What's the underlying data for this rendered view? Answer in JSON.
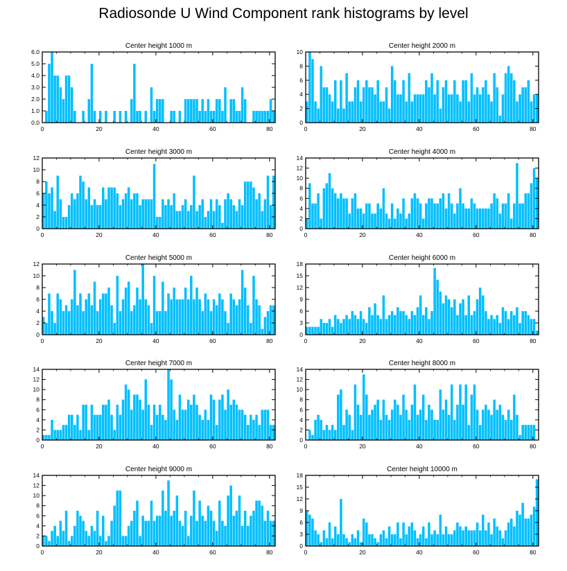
{
  "title": "Radiosonde U Wind Component rank histograms by level",
  "colors": {
    "bar": "#00BFFF",
    "frame": "#000000"
  },
  "chart_data": [
    {
      "type": "bar",
      "title": "Center height 1000 m",
      "xlim": [
        0,
        82
      ],
      "ylim": [
        0,
        6
      ],
      "xticks": [
        0,
        20,
        40,
        60,
        80
      ],
      "yticks": [
        0,
        1,
        2,
        3,
        4,
        5,
        6
      ],
      "ytick_labels": [
        "0.0",
        "1.0",
        "2.0",
        "3.0",
        "4.0",
        "5.0",
        "6.0"
      ],
      "values": [
        0,
        1,
        5,
        6,
        4,
        4,
        3,
        2,
        4,
        4,
        3,
        1,
        0,
        0,
        1,
        0,
        2,
        5,
        1,
        0,
        1,
        0,
        1,
        0,
        0,
        1,
        0,
        1,
        0,
        1,
        0,
        2,
        5,
        1,
        1,
        0,
        1,
        0,
        3,
        1,
        2,
        2,
        2,
        0,
        0,
        1,
        1,
        0,
        1,
        0,
        2,
        2,
        2,
        2,
        2,
        1,
        2,
        1,
        2,
        1,
        1,
        2,
        2,
        1,
        3,
        0,
        2,
        2,
        1,
        1,
        3,
        2,
        0,
        0,
        1,
        1,
        1,
        1,
        1,
        1,
        2,
        1
      ]
    },
    {
      "type": "bar",
      "title": "Center height 2000 m",
      "xlim": [
        0,
        82
      ],
      "ylim": [
        0,
        10
      ],
      "xticks": [
        0,
        20,
        40,
        60,
        80
      ],
      "yticks": [
        0,
        2,
        4,
        6,
        8,
        10
      ],
      "ytick_labels": [
        "0",
        "2",
        "4",
        "6",
        "8",
        "10"
      ],
      "values": [
        3,
        10,
        9,
        3,
        2,
        8,
        5,
        5,
        4,
        3,
        6,
        2,
        6,
        2,
        7,
        3,
        3,
        5,
        6,
        3,
        5,
        6,
        5,
        5,
        4,
        6,
        3,
        3,
        5,
        2,
        8,
        6,
        4,
        4,
        6,
        3,
        7,
        3,
        4,
        4,
        4,
        4,
        6,
        5,
        7,
        4,
        6,
        2,
        5,
        6,
        4,
        4,
        6,
        4,
        3,
        6,
        6,
        3,
        7,
        4,
        5,
        4,
        5,
        6,
        4,
        3,
        7,
        5,
        1,
        4,
        7,
        8,
        7,
        6,
        3,
        4,
        5,
        5,
        6,
        3,
        4,
        4
      ]
    },
    {
      "type": "bar",
      "title": "Center height 3000 m",
      "xlim": [
        0,
        82
      ],
      "ylim": [
        0,
        12
      ],
      "xticks": [
        0,
        20,
        40,
        60,
        80
      ],
      "yticks": [
        0,
        2,
        4,
        6,
        8,
        10,
        12
      ],
      "ytick_labels": [
        "0",
        "2",
        "4",
        "6",
        "8",
        "10",
        "12"
      ],
      "values": [
        6,
        8,
        6,
        7,
        3,
        9,
        5,
        2,
        2,
        4,
        6,
        5,
        6,
        9,
        8,
        5,
        7,
        4,
        5,
        4,
        4,
        7,
        5,
        7,
        7,
        7,
        6,
        4,
        5,
        6,
        7,
        5,
        6,
        6,
        4,
        5,
        5,
        5,
        5,
        11,
        2,
        2,
        5,
        4,
        5,
        4,
        6,
        3,
        3,
        4,
        5,
        3,
        4,
        9,
        3,
        4,
        5,
        2,
        3,
        5,
        3,
        5,
        4,
        1,
        5,
        6,
        5,
        4,
        3,
        5,
        4,
        8,
        8,
        8,
        7,
        5,
        6,
        3,
        5,
        9,
        4,
        9
      ]
    },
    {
      "type": "bar",
      "title": "Center height 4000 m",
      "xlim": [
        0,
        82
      ],
      "ylim": [
        0,
        14
      ],
      "xticks": [
        0,
        20,
        40,
        60,
        80
      ],
      "yticks": [
        0,
        2,
        4,
        6,
        8,
        10,
        12,
        14
      ],
      "ytick_labels": [
        "0",
        "2",
        "4",
        "6",
        "8",
        "10",
        "12",
        "14"
      ],
      "values": [
        2,
        9,
        5,
        5,
        7,
        2,
        8,
        9,
        11,
        8,
        7,
        6,
        7,
        6,
        6,
        3,
        6,
        7,
        4,
        4,
        3,
        5,
        5,
        3,
        3,
        5,
        4,
        8,
        3,
        2,
        5,
        2,
        4,
        3,
        6,
        2,
        3,
        6,
        7,
        6,
        5,
        2,
        5,
        6,
        6,
        5,
        5,
        6,
        7,
        4,
        7,
        5,
        3,
        5,
        8,
        5,
        4,
        4,
        6,
        5,
        4,
        4,
        4,
        4,
        4,
        5,
        7,
        6,
        3,
        5,
        5,
        7,
        2,
        5,
        13,
        5,
        5,
        7,
        7,
        9,
        12,
        10
      ]
    },
    {
      "type": "bar",
      "title": "Center height 5000 m",
      "xlim": [
        0,
        82
      ],
      "ylim": [
        0,
        12
      ],
      "xticks": [
        0,
        20,
        40,
        60,
        80
      ],
      "yticks": [
        0,
        2,
        4,
        6,
        8,
        10,
        12
      ],
      "ytick_labels": [
        "0",
        "2",
        "4",
        "6",
        "8",
        "10",
        "12"
      ],
      "values": [
        3,
        2,
        7,
        4,
        2,
        7,
        6,
        4,
        5,
        4,
        6,
        11,
        5,
        7,
        4,
        6,
        7,
        5,
        9,
        4,
        6,
        7,
        7,
        8,
        5,
        2,
        10,
        4,
        6,
        8,
        9,
        4,
        5,
        8,
        6,
        12,
        6,
        5,
        2,
        10,
        4,
        4,
        9,
        4,
        7,
        6,
        8,
        6,
        6,
        6,
        8,
        6,
        10,
        6,
        8,
        6,
        4,
        7,
        6,
        4,
        6,
        5,
        7,
        6,
        4,
        2,
        7,
        6,
        5,
        6,
        11,
        8,
        5,
        2,
        10,
        6,
        5,
        1,
        3,
        4,
        5,
        5
      ]
    },
    {
      "type": "bar",
      "title": "Center height 6000 m",
      "xlim": [
        0,
        82
      ],
      "ylim": [
        0,
        18
      ],
      "xticks": [
        0,
        20,
        40,
        60,
        80
      ],
      "yticks": [
        0,
        3,
        6,
        9,
        12,
        15,
        18
      ],
      "ytick_labels": [
        "0",
        "3",
        "6",
        "9",
        "12",
        "15",
        "18"
      ],
      "values": [
        2,
        2,
        2,
        2,
        2,
        4,
        3,
        3,
        4,
        2,
        5,
        4,
        3,
        4,
        5,
        4,
        6,
        5,
        4,
        6,
        4,
        3,
        7,
        5,
        8,
        5,
        4,
        10,
        4,
        5,
        6,
        5,
        7,
        6,
        6,
        5,
        4,
        6,
        5,
        7,
        10,
        5,
        7,
        4,
        6,
        17,
        14,
        11,
        8,
        10,
        9,
        7,
        9,
        5,
        8,
        9,
        5,
        10,
        5,
        6,
        9,
        12,
        10,
        6,
        4,
        5,
        4,
        5,
        3,
        7,
        6,
        4,
        6,
        5,
        7,
        3,
        6,
        6,
        5,
        4,
        4,
        1
      ]
    },
    {
      "type": "bar",
      "title": "Center height 7000 m",
      "xlim": [
        0,
        82
      ],
      "ylim": [
        0,
        14
      ],
      "xticks": [
        0,
        20,
        40,
        60,
        80
      ],
      "yticks": [
        0,
        2,
        4,
        6,
        8,
        10,
        12,
        14
      ],
      "ytick_labels": [
        "0",
        "2",
        "4",
        "6",
        "8",
        "10",
        "12",
        "14"
      ],
      "values": [
        1,
        1,
        1,
        4,
        2,
        2,
        2,
        3,
        3,
        5,
        5,
        3,
        5,
        2,
        7,
        7,
        2,
        7,
        5,
        5,
        5,
        7,
        7,
        8,
        5,
        2,
        7,
        5,
        8,
        11,
        10,
        6,
        9,
        9,
        8,
        6,
        12,
        7,
        3,
        7,
        5,
        7,
        5,
        4,
        14,
        12,
        6,
        4,
        9,
        6,
        6,
        8,
        7,
        9,
        7,
        5,
        4,
        6,
        4,
        9,
        8,
        3,
        8,
        9,
        6,
        10,
        7,
        8,
        7,
        6,
        6,
        5,
        3,
        5,
        4,
        5,
        3,
        6,
        6,
        6,
        3,
        3
      ]
    },
    {
      "type": "bar",
      "title": "Center height 8000 m",
      "xlim": [
        0,
        82
      ],
      "ylim": [
        0,
        14
      ],
      "xticks": [
        0,
        20,
        40,
        60,
        80
      ],
      "yticks": [
        0,
        2,
        4,
        6,
        8,
        10,
        12,
        14
      ],
      "ytick_labels": [
        "0",
        "2",
        "4",
        "6",
        "8",
        "10",
        "12",
        "14"
      ],
      "values": [
        0,
        2,
        1,
        4,
        5,
        4,
        2,
        3,
        2,
        3,
        2,
        9,
        10,
        3,
        6,
        5,
        2,
        11,
        7,
        5,
        13,
        9,
        5,
        6,
        7,
        8,
        4,
        8,
        5,
        4,
        6,
        8,
        7,
        5,
        9,
        6,
        4,
        7,
        11,
        5,
        6,
        9,
        4,
        7,
        6,
        4,
        4,
        10,
        6,
        8,
        5,
        11,
        4,
        7,
        11,
        7,
        11,
        3,
        9,
        11,
        6,
        3,
        6,
        7,
        6,
        5,
        8,
        6,
        7,
        5,
        4,
        6,
        4,
        9,
        5,
        1,
        3,
        3,
        3,
        3,
        3,
        0
      ]
    },
    {
      "type": "bar",
      "title": "Center height 9000 m",
      "xlim": [
        0,
        82
      ],
      "ylim": [
        0,
        14
      ],
      "xticks": [
        0,
        20,
        40,
        60,
        80
      ],
      "yticks": [
        0,
        2,
        4,
        6,
        8,
        10,
        12,
        14
      ],
      "ytick_labels": [
        "0",
        "2",
        "4",
        "6",
        "8",
        "10",
        "12",
        "14"
      ],
      "values": [
        2,
        2,
        1,
        3,
        4,
        2,
        5,
        3,
        7,
        1,
        2,
        4,
        7,
        6,
        5,
        3,
        2,
        4,
        3,
        7,
        2,
        6,
        1,
        2,
        5,
        8,
        11,
        11,
        2,
        2,
        4,
        5,
        7,
        9,
        2,
        6,
        5,
        5,
        9,
        5,
        6,
        6,
        11,
        7,
        13,
        6,
        7,
        10,
        5,
        4,
        7,
        2,
        6,
        11,
        5,
        9,
        6,
        5,
        8,
        7,
        5,
        3,
        9,
        5,
        4,
        10,
        12,
        6,
        7,
        10,
        4,
        7,
        4,
        6,
        7,
        9,
        9,
        8,
        5,
        7,
        5,
        5
      ]
    },
    {
      "type": "bar",
      "title": "Center height 10000 m",
      "xlim": [
        0,
        82
      ],
      "ylim": [
        0,
        18
      ],
      "xticks": [
        0,
        20,
        40,
        60,
        80
      ],
      "yticks": [
        0,
        3,
        6,
        9,
        12,
        15,
        18
      ],
      "ytick_labels": [
        "0",
        "3",
        "6",
        "9",
        "12",
        "15",
        "18"
      ],
      "values": [
        9,
        8,
        7,
        4,
        3,
        1,
        4,
        2,
        6,
        2,
        5,
        3,
        12,
        3,
        2,
        1,
        3,
        2,
        4,
        1,
        7,
        6,
        3,
        3,
        2,
        1,
        3,
        4,
        2,
        5,
        3,
        3,
        6,
        2,
        6,
        3,
        5,
        6,
        4,
        2,
        3,
        5,
        2,
        6,
        3,
        4,
        3,
        8,
        3,
        5,
        3,
        3,
        4,
        6,
        5,
        4,
        5,
        4,
        4,
        4,
        6,
        4,
        8,
        4,
        6,
        3,
        7,
        5,
        4,
        2,
        4,
        6,
        7,
        5,
        9,
        8,
        11,
        7,
        7,
        8,
        10,
        17
      ]
    }
  ]
}
